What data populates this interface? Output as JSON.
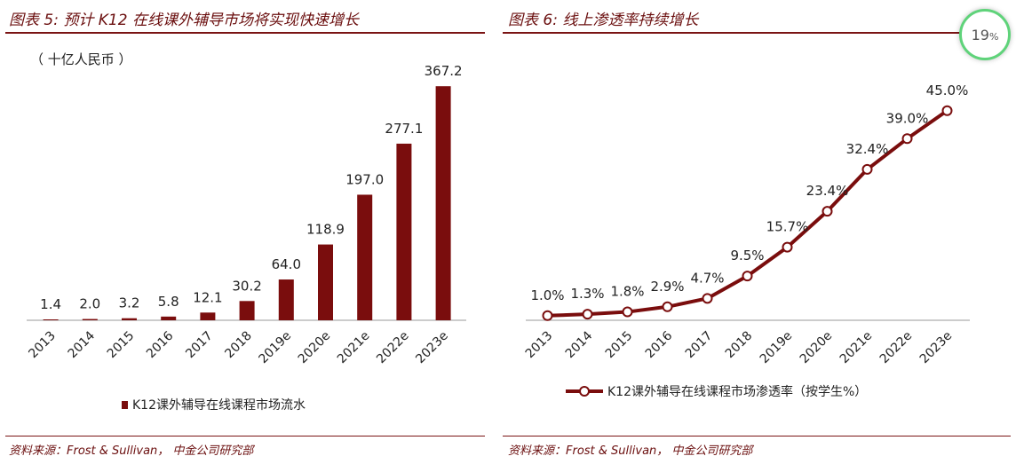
{
  "left": {
    "title": "图表 5: 预计 K12 在线课外辅导市场将实现快速增长",
    "unit": "（ 十亿人民币 ）",
    "source": "资料来源：Frost & Sullivan， 中金公司研究部"
  },
  "right": {
    "title": "图表 6: 线上渗透率持续增长",
    "source": "资料来源：Frost & Sullivan， 中金公司研究部"
  },
  "badge": {
    "value": "19",
    "suffix": "%"
  },
  "colors": {
    "bar": "#7a0d0d",
    "line": "#7a0d0d",
    "title": "#6b0f0f",
    "rule": "#7a1414",
    "badge_ring": "#5fd37a"
  },
  "chart_data": [
    {
      "type": "bar",
      "categories": [
        "2013",
        "2014",
        "2015",
        "2016",
        "2017",
        "2018",
        "2019e",
        "2020e",
        "2021e",
        "2022e",
        "2023e"
      ],
      "values": [
        1.4,
        2.0,
        3.2,
        5.8,
        12.1,
        30.2,
        64.0,
        118.9,
        197.0,
        277.1,
        367.2
      ],
      "labels": [
        "1.4",
        "2.0",
        "3.2",
        "5.8",
        "12.1",
        "30.2",
        "64.0",
        "118.9",
        "197.0",
        "277.1",
        "367.2"
      ],
      "series": [
        {
          "name": "K12课外辅导在线课程市场流水"
        }
      ],
      "ylim": [
        0,
        380
      ],
      "legend": "bottom"
    },
    {
      "type": "line",
      "categories": [
        "2013",
        "2014",
        "2015",
        "2016",
        "2017",
        "2018",
        "2019e",
        "2020e",
        "2021e",
        "2022e",
        "2023e"
      ],
      "values": [
        1.0,
        1.3,
        1.8,
        2.9,
        4.7,
        9.5,
        15.7,
        23.4,
        32.4,
        39.0,
        45.0
      ],
      "labels": [
        "1.0%",
        "1.3%",
        "1.8%",
        "2.9%",
        "4.7%",
        "9.5%",
        "15.7%",
        "23.4%",
        "32.4%",
        "39.0%",
        "45.0%"
      ],
      "series": [
        {
          "name": "K12课外辅导在线课程市场渗透率（按学生%）"
        }
      ],
      "ylim": [
        0,
        52
      ],
      "legend": "bottom"
    }
  ]
}
